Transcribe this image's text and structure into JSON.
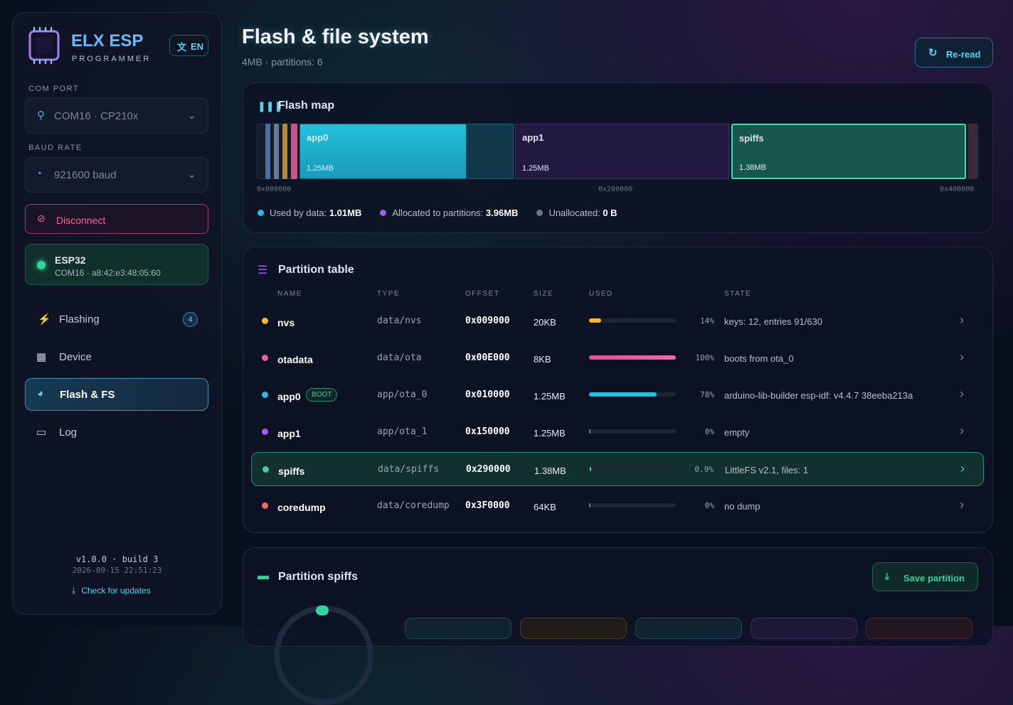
{
  "sidebar": {
    "brand": "ELX ESP",
    "brand_sub": "PROGRAMMER",
    "lang": "EN",
    "com_port_label": "COM PORT",
    "com_port": "COM16 · CP210x",
    "baud_label": "BAUD RATE",
    "baud": "921600 baud",
    "disconnect": "Disconnect",
    "device": {
      "name": "ESP32",
      "detail": "COM16 · a8:42:e3:48:05:60"
    },
    "nav": [
      {
        "label": "Flashing",
        "badge": "4"
      },
      {
        "label": "Device"
      },
      {
        "label": "Flash & FS"
      },
      {
        "label": "Log"
      }
    ],
    "version": "v1.0.0 · build 3",
    "build_date": "2026-09-15 22:51:23",
    "updates": "Check for updates"
  },
  "header": {
    "title": "Flash & file system",
    "subtitle": "4MB · partitions: 6",
    "reread": "Re-read"
  },
  "flash_map": {
    "title": "Flash map",
    "segments": [
      {
        "name": "app0",
        "size": "1.25MB"
      },
      {
        "name": "app1",
        "size": "1.25MB"
      },
      {
        "name": "spiffs",
        "size": "1.38MB"
      }
    ],
    "addresses": [
      "0x000000",
      "0x200000",
      "0x400000"
    ],
    "legend": [
      {
        "label": "Used by data:",
        "value": "1.01MB"
      },
      {
        "label": "Allocated to partitions:",
        "value": "3.96MB"
      },
      {
        "label": "Unallocated:",
        "value": "0 B"
      }
    ]
  },
  "partition_table": {
    "title": "Partition table",
    "columns": [
      "NAME",
      "TYPE",
      "OFFSET",
      "SIZE",
      "USED",
      "STATE"
    ],
    "rows": [
      {
        "name": "nvs",
        "type": "data/nvs",
        "offset": "0x009000",
        "size": "20KB",
        "used": {
          "value": 14,
          "label": "14%"
        },
        "state": "keys: 12, entries 91/630"
      },
      {
        "name": "otadata",
        "type": "data/ota",
        "offset": "0x00E000",
        "size": "8KB",
        "used": {
          "value": 100,
          "label": "100%"
        },
        "state": "boots from ota_0"
      },
      {
        "name": "app0",
        "badge": "BOOT",
        "type": "app/ota_0",
        "offset": "0x010000",
        "size": "1.25MB",
        "used": {
          "value": 78,
          "label": "78%"
        },
        "state": "arduino-lib-builder esp-idf: v4.4.7 38eeba213a"
      },
      {
        "name": "app1",
        "type": "app/ota_1",
        "offset": "0x150000",
        "size": "1.25MB",
        "used": {
          "value": 0,
          "label": "0%"
        },
        "state": "empty"
      },
      {
        "name": "spiffs",
        "type": "data/spiffs",
        "offset": "0x290000",
        "size": "1.38MB",
        "used": {
          "value": 0.9,
          "label": "0.9%"
        },
        "state": "LittleFS v2.1, files: 1"
      },
      {
        "name": "coredump",
        "type": "data/coredump",
        "offset": "0x3F0000",
        "size": "64KB",
        "used": {
          "value": 0,
          "label": "0%"
        },
        "state": "no dump"
      }
    ]
  },
  "partition_panel": {
    "title": "Partition spiffs",
    "save": "Save partition"
  }
}
